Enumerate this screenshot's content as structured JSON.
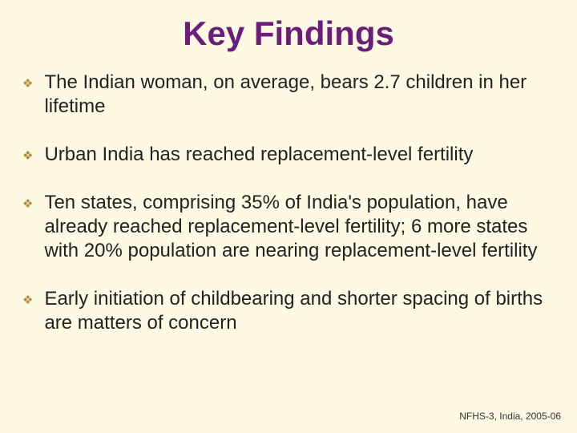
{
  "slide": {
    "title": "Key Findings",
    "bullets": [
      "The Indian woman, on average, bears 2.7 children in her lifetime",
      "Urban India has reached replacement-level fertility",
      "Ten states, comprising 35% of India's population, have already reached replacement-level fertility; 6 more states with 20% population are nearing replacement-level fertility",
      "Early initiation of childbearing and shorter spacing of births are matters of concern"
    ],
    "footer": "NFHS-3, India, 2005-06"
  },
  "style": {
    "background_color": "#fdf9e3",
    "title_color": "#6a1e7a",
    "title_fontsize": 42,
    "bullet_color": "#222222",
    "bullet_fontsize": 24,
    "diamond_color": "#b78a3a",
    "footer_color": "#333333",
    "footer_fontsize": 12
  }
}
